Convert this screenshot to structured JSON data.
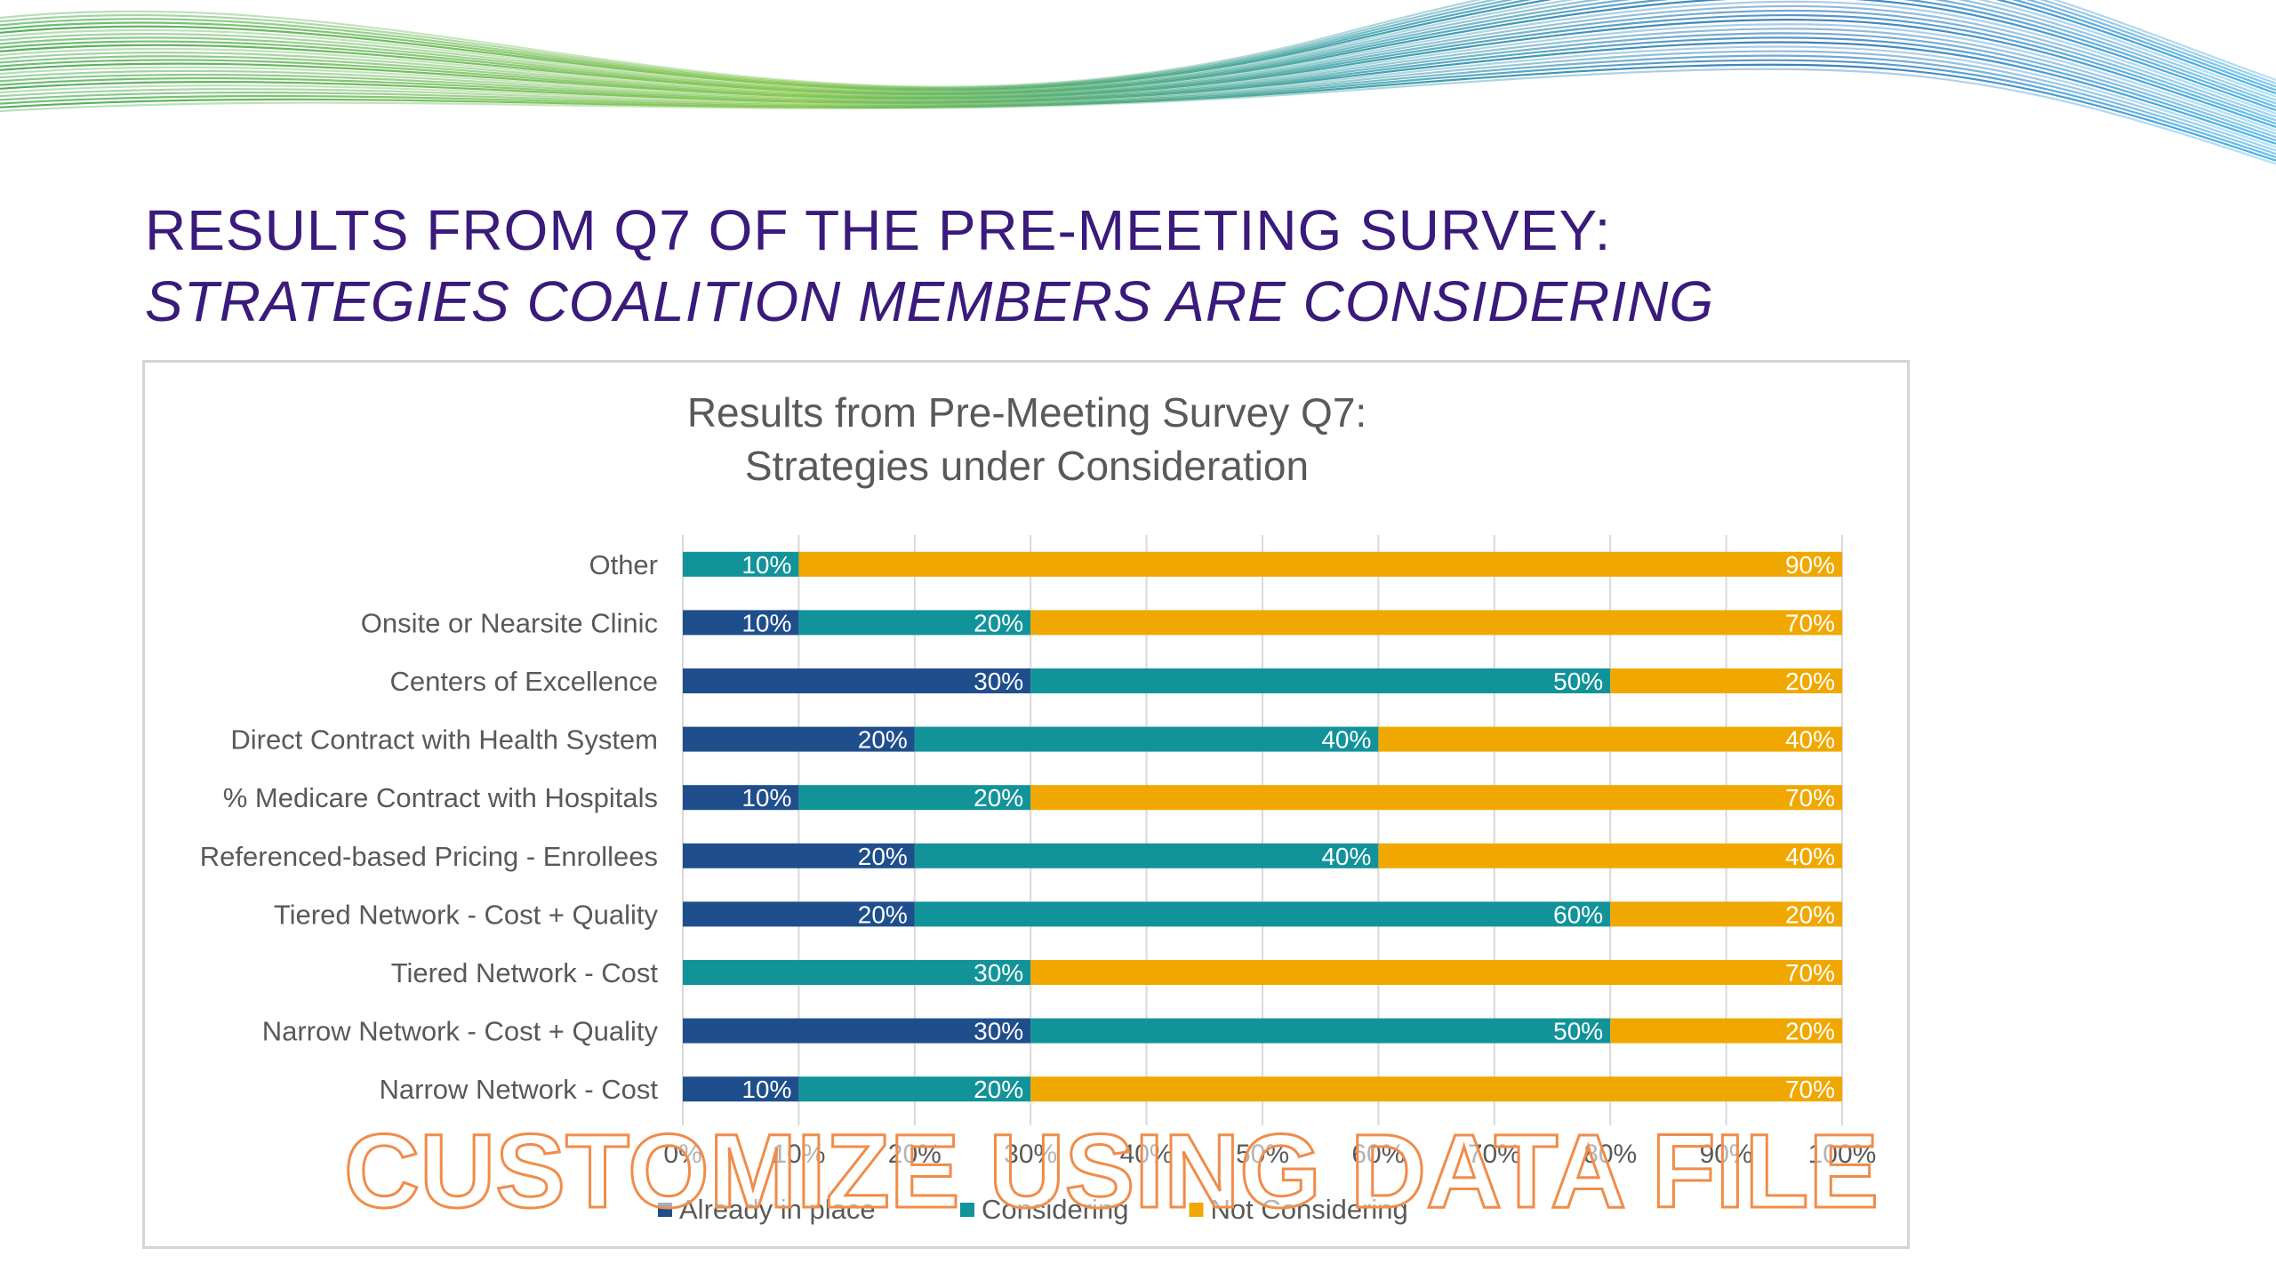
{
  "slide": {
    "title_line1": "RESULTS FROM Q7 OF THE PRE-MEETING SURVEY:",
    "title_line2": "STRATEGIES COALITION MEMBERS ARE CONSIDERING",
    "title_color": "#3a1a7a"
  },
  "watermark": {
    "text": "CUSTOMIZE USING DATA FILE",
    "color": "#f08c4a"
  },
  "chart_data": {
    "type": "bar",
    "orientation": "horizontal",
    "stacked": true,
    "title": "Results from Pre-Meeting Survey Q7:",
    "subtitle": "Strategies under Consideration",
    "categories": [
      "Other",
      "Onsite or Nearsite Clinic",
      "Centers of Excellence",
      "Direct Contract with Health System",
      "% Medicare Contract with Hospitals",
      "Referenced-based Pricing - Enrollees",
      "Tiered Network - Cost + Quality",
      "Tiered Network - Cost",
      "Narrow Network - Cost + Quality",
      "Narrow Network - Cost"
    ],
    "series": [
      {
        "name": "Already in place",
        "color": "#1f4e8c",
        "values": [
          0,
          10,
          30,
          20,
          10,
          20,
          20,
          0,
          30,
          10
        ]
      },
      {
        "name": "Considering",
        "color": "#12939a",
        "values": [
          10,
          20,
          50,
          40,
          20,
          40,
          60,
          30,
          50,
          20
        ]
      },
      {
        "name": "Not Considering",
        "color": "#f0a800",
        "values": [
          90,
          70,
          20,
          40,
          70,
          40,
          20,
          70,
          20,
          70
        ]
      }
    ],
    "x_ticks": [
      "0%",
      "10%",
      "20%",
      "30%",
      "40%",
      "50%",
      "60%",
      "70%",
      "80%",
      "90%",
      "100%"
    ],
    "xlim": [
      0,
      100
    ],
    "grid": true,
    "legend_position": "bottom",
    "data_label_suffix": "%"
  }
}
